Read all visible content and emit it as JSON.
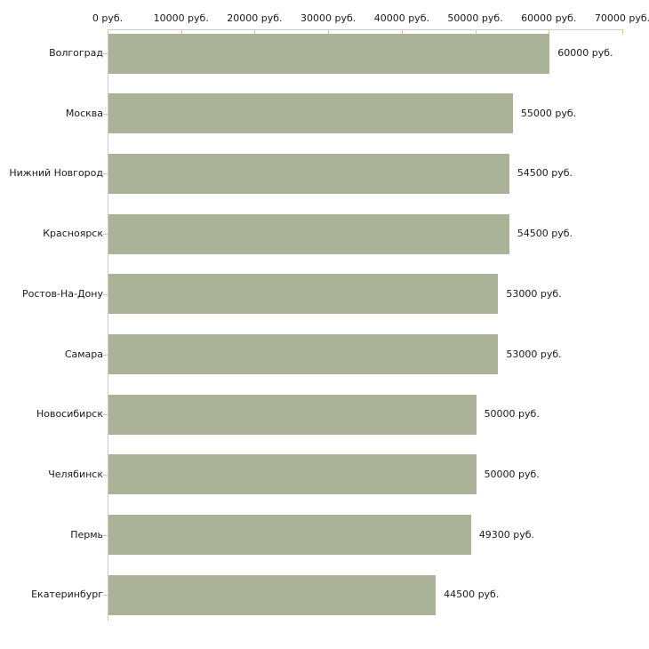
{
  "chart": {
    "bar_color": "#aab397",
    "axis_line_color": "#cccccc",
    "tick_color": "#cccc99",
    "text_color": "#1a1a1a",
    "background_color": "#ffffff",
    "unit_suffix": "руб."
  },
  "chart_data": {
    "type": "bar",
    "orientation": "horizontal",
    "title": "",
    "xlabel": "",
    "ylabel": "",
    "grid": false,
    "legend": false,
    "xlim": [
      0,
      70000
    ],
    "categories": [
      "Волгоград",
      "Москва",
      "Нижний Новгород",
      "Красноярск",
      "Ростов-На-Дону",
      "Самара",
      "Новосибирск",
      "Челябинск",
      "Пермь",
      "Екатеринбург"
    ],
    "values": [
      60000,
      55000,
      54500,
      54500,
      53000,
      53000,
      50000,
      50000,
      49300,
      44500
    ],
    "value_labels": [
      "60000 руб.",
      "55000 руб.",
      "54500 руб.",
      "54500 руб.",
      "53000 руб.",
      "53000 руб.",
      "50000 руб.",
      "50000 руб.",
      "49300 руб.",
      "44500 руб."
    ],
    "x_ticks": [
      {
        "value": 0,
        "label": "0 руб."
      },
      {
        "value": 10000,
        "label": "10000 руб."
      },
      {
        "value": 20000,
        "label": "20000 руб."
      },
      {
        "value": 30000,
        "label": "30000 руб."
      },
      {
        "value": 40000,
        "label": "40000 руб."
      },
      {
        "value": 50000,
        "label": "50000 руб."
      },
      {
        "value": 60000,
        "label": "60000 руб."
      },
      {
        "value": 70000,
        "label": "70000 руб."
      }
    ]
  }
}
